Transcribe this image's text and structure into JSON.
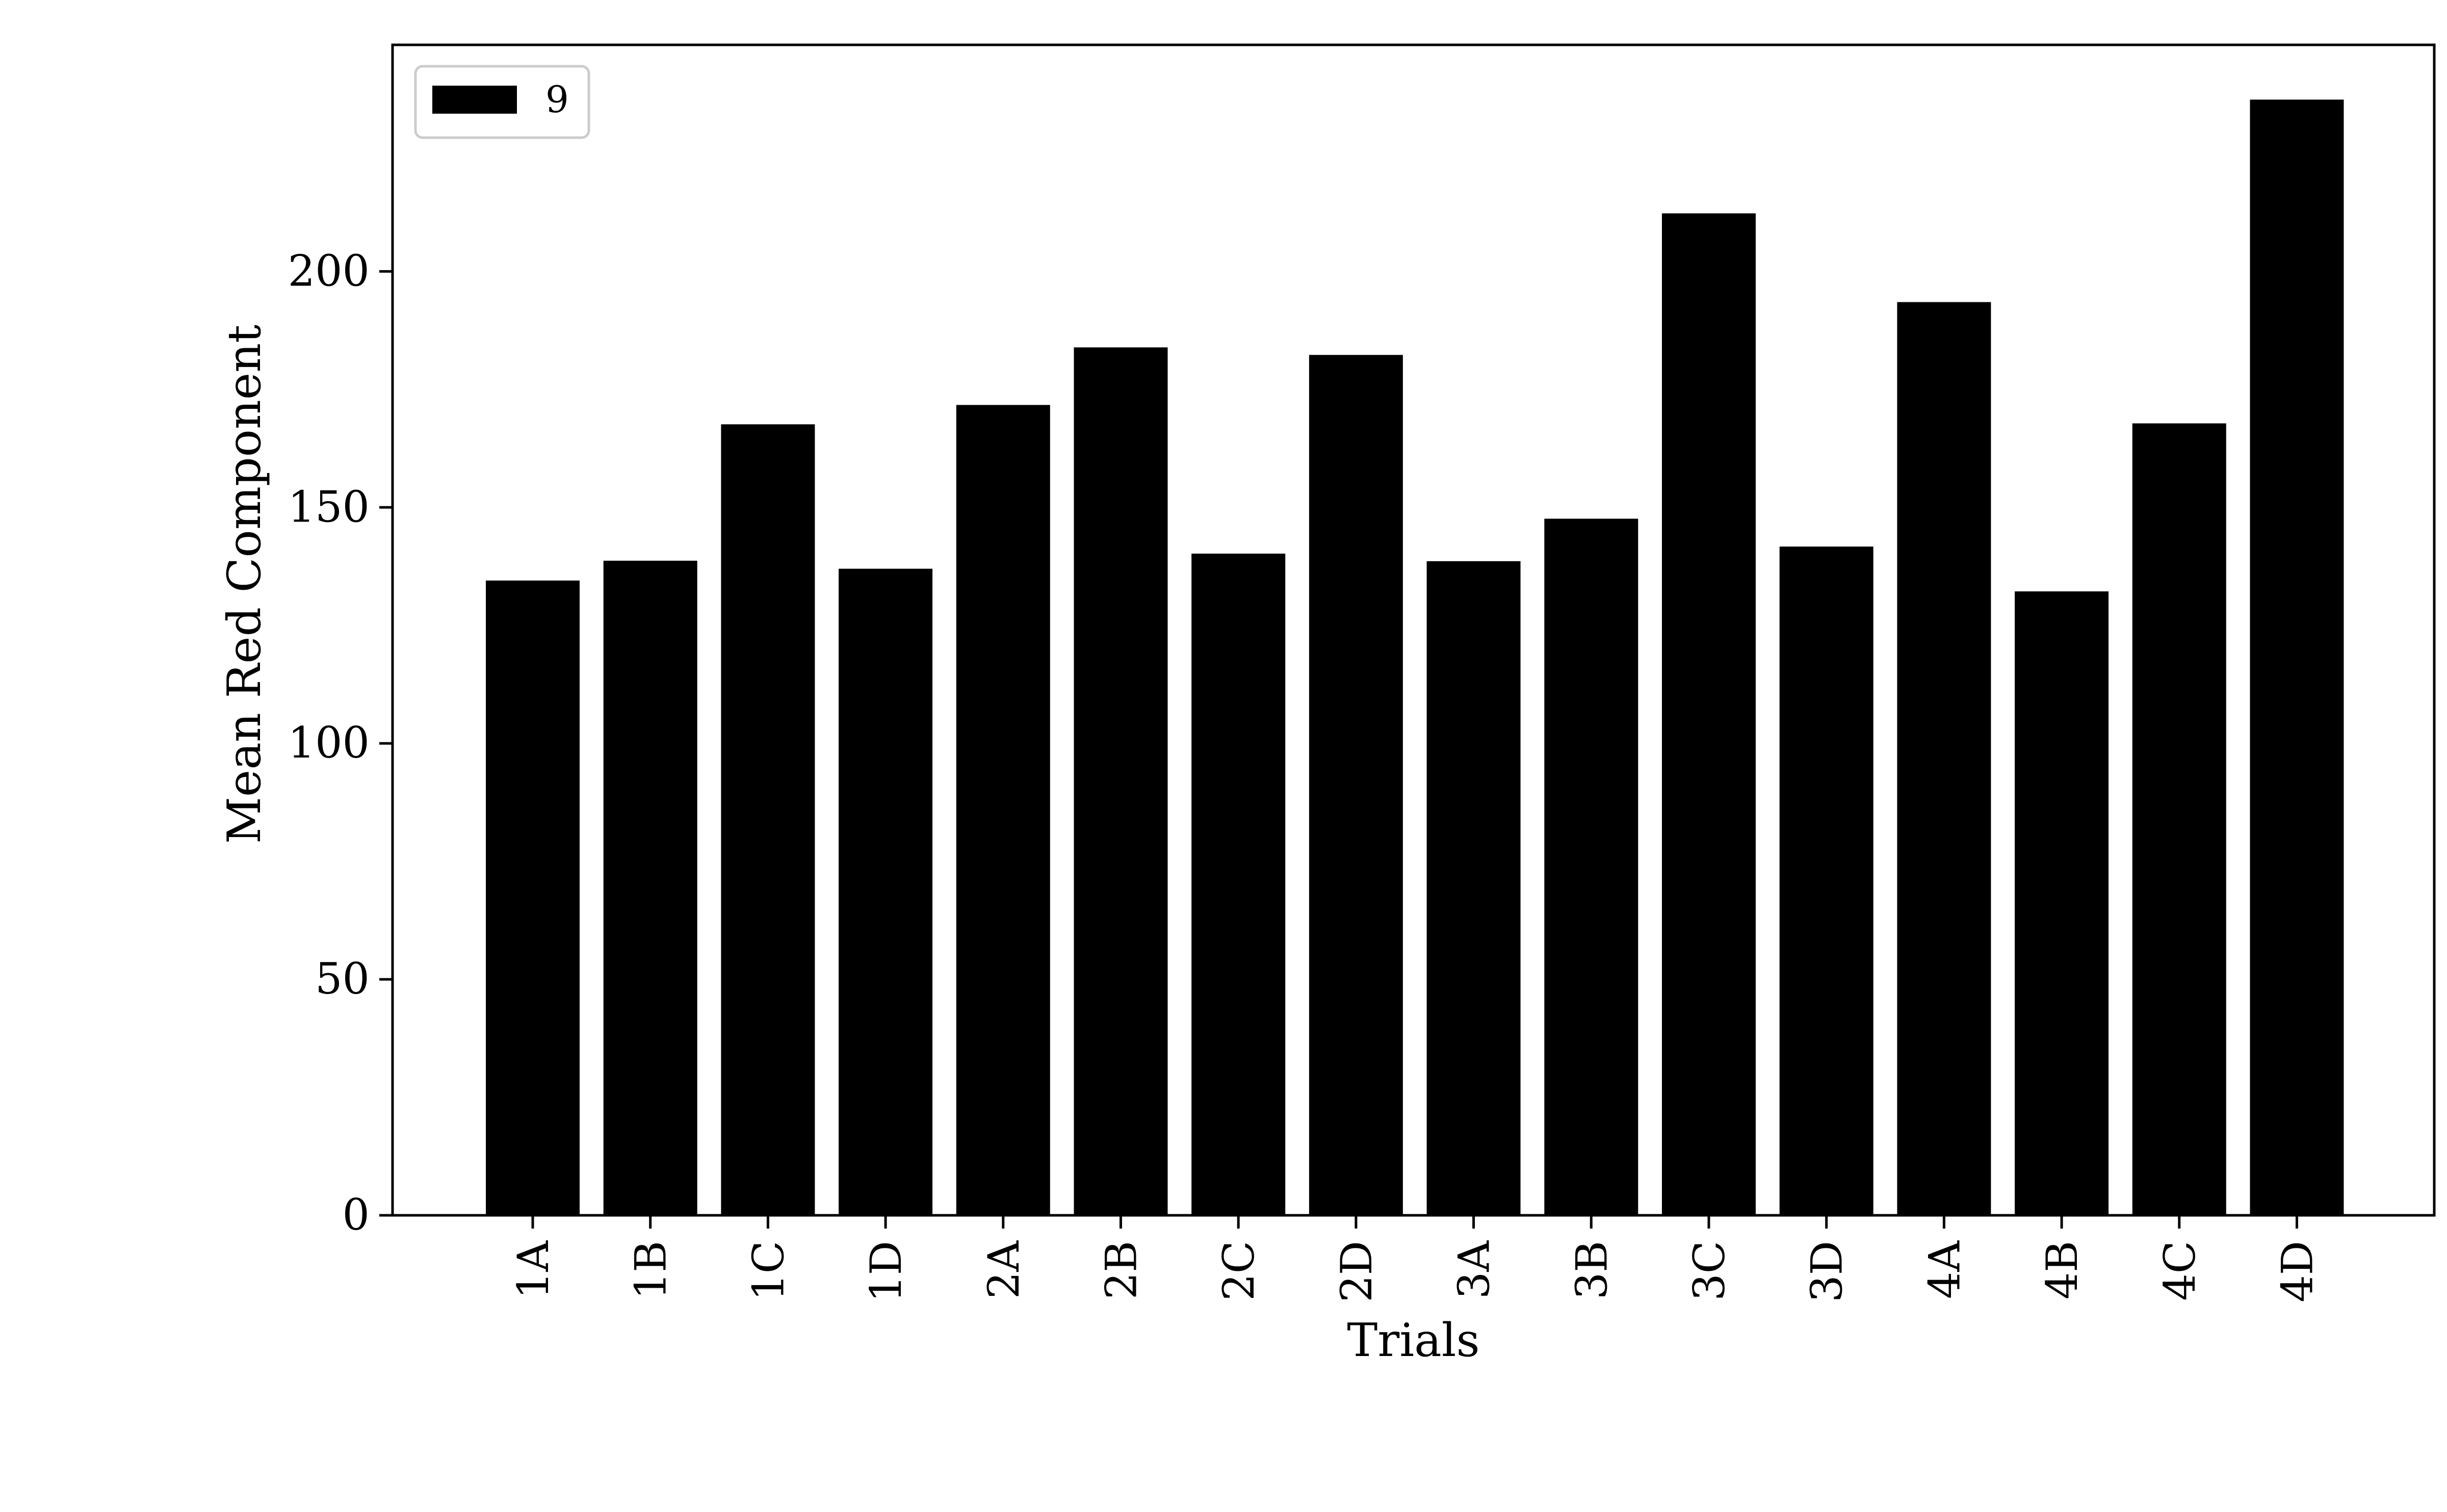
{
  "chart_data": {
    "type": "bar",
    "categories": [
      "1A",
      "1B",
      "1C",
      "1D",
      "2A",
      "2B",
      "2C",
      "2D",
      "3A",
      "3B",
      "3C",
      "3D",
      "4A",
      "4B",
      "4C",
      "4D"
    ],
    "series": [
      {
        "name": "9",
        "color": "#000000",
        "values": [
          134.5,
          138.7,
          167.6,
          137.0,
          171.7,
          183.9,
          140.2,
          182.3,
          138.6,
          147.6,
          212.3,
          141.7,
          193.5,
          132.2,
          167.8,
          236.4
        ]
      }
    ],
    "title": "",
    "xlabel": "Trials",
    "ylabel": "Mean Red Component",
    "ylim": [
      0,
      248
    ],
    "yticks": [
      0,
      50,
      100,
      150,
      200
    ],
    "grid": false,
    "legend": {
      "position": "upper-left"
    }
  }
}
